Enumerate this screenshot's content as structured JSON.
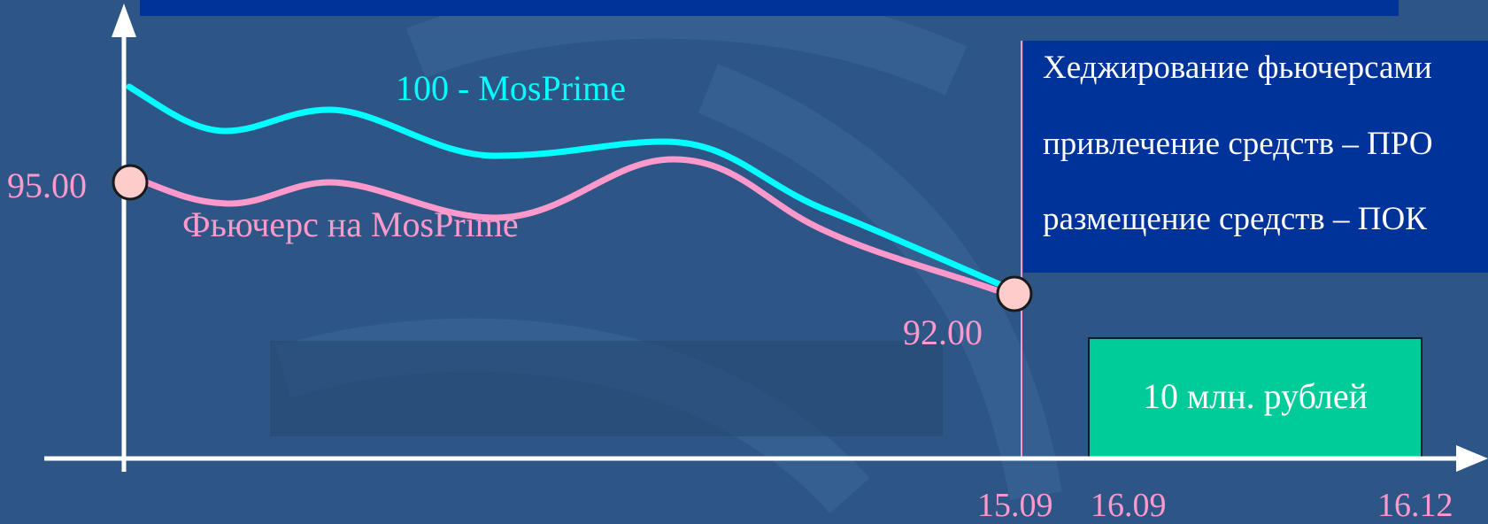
{
  "colors": {
    "background": "#2d5686",
    "box_fill": "#003399",
    "axis": "#ffffff",
    "series_mosprime": "#00ffff",
    "series_futures": "#ff99cc",
    "marker_fill": "#ffcccc",
    "label_pink": "#ff99cc",
    "amount_box": "#00cc99"
  },
  "info_box": {
    "lines": [
      "Хеджирование фьючерсами",
      "привлечение средств – ПРО",
      "размещение средств  – ПОК"
    ]
  },
  "amount_box": {
    "label": "10 млн. рублей"
  },
  "chart_data": {
    "type": "line",
    "title": "",
    "xlabel": "",
    "ylabel": "",
    "x_ticks": [
      "15.09",
      "16.09",
      "16.12"
    ],
    "y_markers": [
      {
        "label": "95.00",
        "value": 95.0
      },
      {
        "label": "92.00",
        "value": 92.0
      }
    ],
    "grid": false,
    "series": [
      {
        "name": "100 - MosPrime",
        "color": "#00ffff"
      },
      {
        "name": "Фьючерс на MosPrime",
        "color": "#ff99cc"
      }
    ]
  }
}
